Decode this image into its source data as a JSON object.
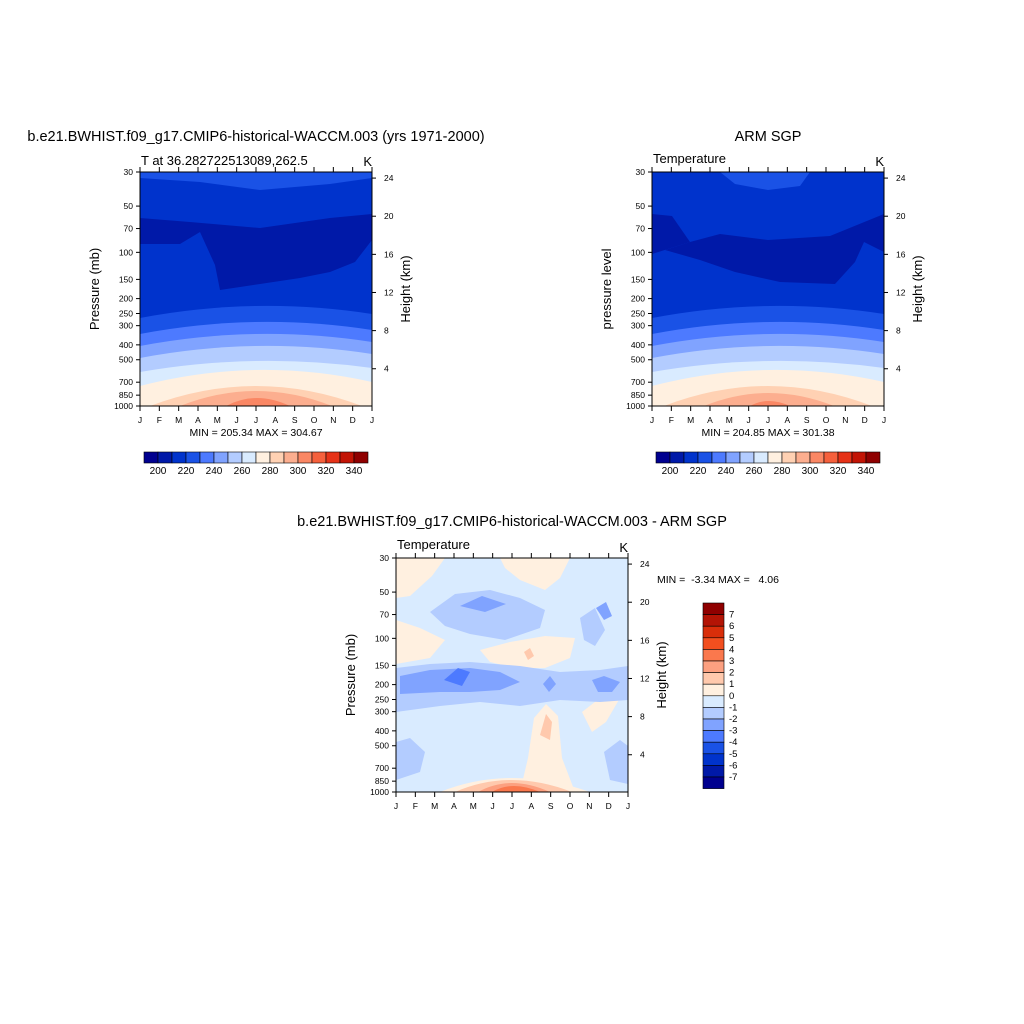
{
  "chart_data": [
    {
      "type": "heatmap",
      "panel": "model",
      "title": "b.e21.BWHIST.f09_g17.CMIP6-historical-WACCM.003 (yrs 1971-2000)",
      "subtitle_left": "T at 36.282722513089,262.5",
      "units": "K",
      "ylabel": "Pressure (mb)",
      "ylabel_right": "Height (km)",
      "x_ticks": [
        "J",
        "F",
        "M",
        "A",
        "M",
        "J",
        "J",
        "A",
        "S",
        "O",
        "N",
        "D",
        "J"
      ],
      "y_ticks": [
        30,
        50,
        70,
        100,
        150,
        200,
        250,
        300,
        400,
        500,
        700,
        850,
        1000
      ],
      "y_ticks_right": [
        24,
        20,
        16,
        12,
        8,
        4
      ],
      "stats_text": "MIN = 205.34 MAX = 304.67",
      "min": 205.34,
      "max": 304.67,
      "colorbar_levels": [
        190,
        200,
        210,
        220,
        230,
        240,
        250,
        260,
        270,
        280,
        290,
        300,
        310,
        320,
        330,
        340,
        350
      ],
      "colorbar_labels": [
        "200",
        "220",
        "240",
        "260",
        "280",
        "300",
        "320",
        "340"
      ]
    },
    {
      "type": "heatmap",
      "panel": "obs",
      "title": "ARM SGP",
      "subtitle_left": "Temperature",
      "units": "K",
      "ylabel": "pressure level",
      "ylabel_right": "Height (km)",
      "x_ticks": [
        "J",
        "F",
        "M",
        "A",
        "M",
        "J",
        "J",
        "A",
        "S",
        "O",
        "N",
        "D",
        "J"
      ],
      "y_ticks": [
        30,
        50,
        70,
        100,
        150,
        200,
        250,
        300,
        400,
        500,
        700,
        850,
        1000
      ],
      "y_ticks_right": [
        24,
        20,
        16,
        12,
        8,
        4
      ],
      "stats_text": "MIN = 204.85 MAX = 301.38",
      "min": 204.85,
      "max": 301.38,
      "colorbar_levels": [
        190,
        200,
        210,
        220,
        230,
        240,
        250,
        260,
        270,
        280,
        290,
        300,
        310,
        320,
        330,
        340,
        350
      ],
      "colorbar_labels": [
        "200",
        "220",
        "240",
        "260",
        "280",
        "300",
        "320",
        "340"
      ]
    },
    {
      "type": "heatmap",
      "panel": "diff",
      "title": "b.e21.BWHIST.f09_g17.CMIP6-historical-WACCM.003 - ARM SGP",
      "subtitle_left": "Temperature",
      "units": "K",
      "ylabel": "Pressure (mb)",
      "ylabel_right": "Height (km)",
      "x_ticks": [
        "J",
        "F",
        "M",
        "A",
        "M",
        "J",
        "J",
        "A",
        "S",
        "O",
        "N",
        "D",
        "J"
      ],
      "y_ticks": [
        30,
        50,
        70,
        100,
        150,
        200,
        250,
        300,
        400,
        500,
        700,
        850,
        1000
      ],
      "y_ticks_right": [
        24,
        20,
        16,
        12,
        8,
        4
      ],
      "stats_text": "MIN =  -3.34 MAX =   4.06",
      "min": -3.34,
      "max": 4.06,
      "colorbar_labels": [
        "7",
        "6",
        "5",
        "4",
        "3",
        "2",
        "1",
        "0",
        "-1",
        "-2",
        "-3",
        "-4",
        "-5",
        "-6",
        "-7"
      ]
    }
  ],
  "colors": {
    "temp_scale": [
      "#00008f",
      "#0019a8",
      "#0033cc",
      "#1a52e6",
      "#4d7aff",
      "#80a3ff",
      "#b3ccff",
      "#d9ebff",
      "#fff0e0",
      "#ffd1b3",
      "#fcae8f",
      "#fa8764",
      "#f5603c",
      "#e63217",
      "#c21405",
      "#8f0000"
    ],
    "diff_scale": [
      "#8f0000",
      "#b31405",
      "#d92e0a",
      "#f24f1f",
      "#fa784d",
      "#fca080",
      "#ffc9ad",
      "#fff0e0",
      "#d9ebff",
      "#b3ccff",
      "#80a3ff",
      "#4d7aff",
      "#1a52e6",
      "#0033cc",
      "#0019a8",
      "#00008f"
    ]
  }
}
